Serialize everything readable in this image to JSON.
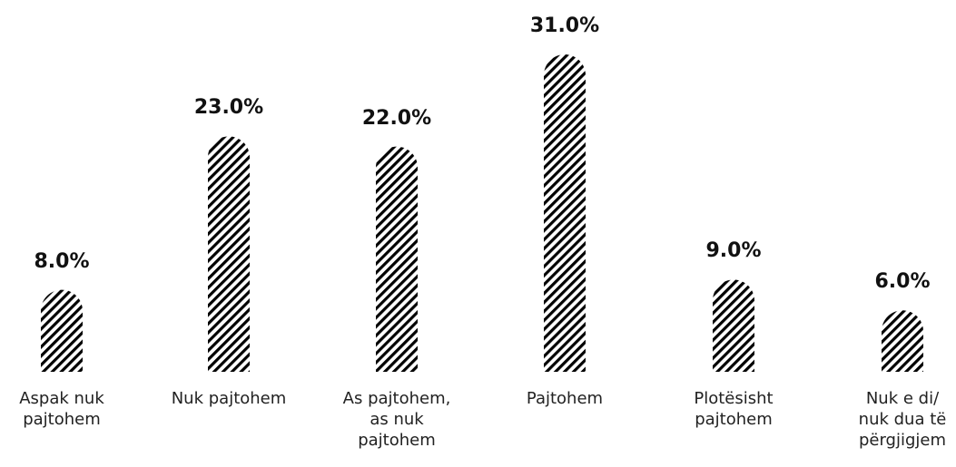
{
  "chart_data": {
    "type": "bar",
    "categories": [
      "Aspak nuk pajtohem",
      "Nuk pajtohem",
      "As pajtohem, as nuk pajtohem",
      "Pajtohem",
      "Plotësisht pajtohem",
      "Nuk e di/ nuk dua të përgjigjem"
    ],
    "values": [
      8,
      23,
      22,
      31,
      9,
      6
    ],
    "value_labels": [
      "8.0%",
      "23.0%",
      "22.0%",
      "31.0%",
      "9.0%",
      "6.0%"
    ],
    "color": "#000000"
  }
}
